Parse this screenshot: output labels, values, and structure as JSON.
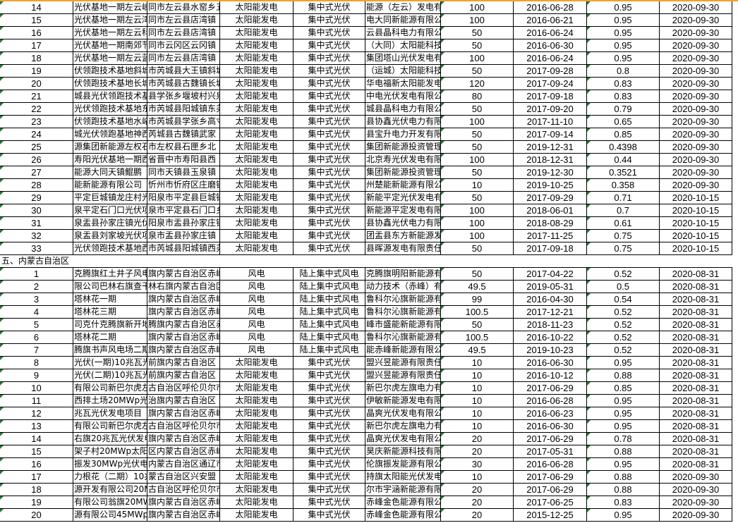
{
  "colors": {
    "indicator": "#1e7a30",
    "top_border": "#f0a030"
  },
  "groups": [
    {
      "rows": [
        [
          "14",
          "光伏基地一期左云峡",
          "同市左云县水窑乡五",
          "太阳能发电",
          "集中式光伏",
          "能源（左云）发电有",
          "100",
          "2016-06-28",
          "0.95",
          "2020-09-30"
        ],
        [
          "15",
          "光伏基地一期左云湾",
          "同市左云县店湾镇",
          "太阳能发电",
          "集中式光伏",
          "电大同新能源有限公",
          "100",
          "2016-06-21",
          "0.95",
          "2020-09-30"
        ],
        [
          "16",
          "光伏基地一期左云科",
          "同市左云县店湾镇",
          "太阳能发电",
          "集中式光伏",
          "云县晶科电力有限公",
          "50",
          "2016-06-24",
          "0.95",
          "2020-09-30"
        ],
        [
          "17",
          "光伏基地一期南郊节",
          "同市云冈区云冈镇",
          "太阳能发电",
          "集中式光伏",
          "（大同）太阳能科技",
          "50",
          "2016-06-30",
          "0.95",
          "2020-09-30"
        ],
        [
          "18",
          "光伏基地一期左云蓝",
          "同市左云县店湾镇",
          "太阳能发电",
          "集中式光伏",
          "集团塔山光伏发电有",
          "100",
          "2016-06-24",
          "0.95",
          "2020-09-30"
        ],
        [
          "19",
          "伏领跑技术基地斜城",
          "市芮城县大王镇斜城",
          "太阳能发电",
          "集中式光伏",
          "（运城）太阳能科技",
          "50",
          "2017-09-28",
          "0.8",
          "2020-09-30"
        ],
        [
          "20",
          "伏领跑技术基地长城",
          "市芮城县古魏镇长城",
          "太阳能发电",
          "集中式光伏",
          "华电福新太阳能发电",
          "120",
          "2017-09-24",
          "0.83",
          "2020-09-30"
        ],
        [
          "21",
          "城县光伏领跑技术基",
          "县学张乡堰坡村兴泉",
          "太阳能发电",
          "集中式光伏",
          "中电光伏发电有限公",
          "80",
          "2017-09-18",
          "0.83",
          "2020-09-30"
        ],
        [
          "22",
          "光伏领跑技术基地东",
          "市芮城县阳城镇东尧",
          "太阳能发电",
          "集中式光伏",
          "城县晶科电力有限公",
          "50",
          "2017-09-20",
          "0.79",
          "2020-09-30"
        ],
        [
          "23",
          "伏领跑技术基地水峪",
          "市芮城县学张乡高寸",
          "太阳能发电",
          "集中式光伏",
          "县协鑫光伏电力有限",
          "100",
          "2017-11-10",
          "0.65",
          "2020-09-30"
        ],
        [
          "24",
          "城光伏领跑基地神西",
          "芮城县古魏镇武家",
          "太阳能发电",
          "集中式光伏",
          "县宝升电力开发有限",
          "50",
          "2017-09-14",
          "0.85",
          "2020-09-30"
        ],
        [
          "25",
          "源集团新能源左权石",
          "市左权县石匣乡北",
          "太阳能发电",
          "集中式光伏",
          "集团新能源投资管理",
          "50",
          "2019-12-31",
          "0.4398",
          "2020-09-30"
        ],
        [
          "26",
          "寿阳光伏基地一期西",
          "省晋中市寿阳县西",
          "太阳能发电",
          "集中式光伏",
          "北京寿光伏发电有限",
          "100",
          "2018-12-31",
          "0.44",
          "2020-09-30"
        ],
        [
          "27",
          "能源大同天镇鲲鹏",
          "同市天镇县玉泉镇",
          "太阳能发电",
          "集中式光伏",
          "集团新能源投资管理",
          "50",
          "2019-12-30",
          "0.3521",
          "2020-09-30"
        ],
        [
          "28",
          "能新能源有限公司（",
          "忻州市忻府区庄磨镇",
          "太阳能发电",
          "集中式光伏",
          "州楚能新能源有限公",
          "10",
          "2019-10-25",
          "0.358",
          "2020-09-30"
        ],
        [
          "29",
          "平定巨城镇龙庄村光",
          "阳泉市平定县巨城镇",
          "太阳能发电",
          "集中式光伏",
          "新能平定光伏发电有",
          "50",
          "2017-09-29",
          "0.71",
          "2020-10-15"
        ],
        [
          "30",
          "泉平定石门口光伏项",
          "泉市平定县石门口乡",
          "太阳能发电",
          "集中式光伏",
          "新能源平定发电有限",
          "100",
          "2018-06-01",
          "0.7",
          "2020-10-15"
        ],
        [
          "31",
          "泉盂县孙家庄镇光伏",
          "阳泉市盂县孙家庄镇",
          "太阳能发电",
          "集中式光伏",
          "县协鑫光伏电力有限",
          "100",
          "2018-08-29",
          "0.61",
          "2020-10-15"
        ],
        [
          "32",
          "泉盂县刘家坡光伏项",
          "泉市盂县孙家庄镇",
          "太阳能发电",
          "集中式光伏",
          "团盂县东方新能源发",
          "100",
          "2017-11-25",
          "0.75",
          "2020-10-15"
        ],
        [
          "33",
          "光伏领跑技术基地西",
          "市芮城县阳城镇西尧",
          "太阳能发电",
          "集中式光伏",
          "县晖源发电有限责任",
          "50",
          "2017-09-18",
          "0.75",
          "2020-10-15"
        ]
      ]
    },
    {
      "section": "五、内蒙古自治区",
      "rows": [
        [
          "1",
          "克腾旗红土井子风电",
          "旗内蒙古自治区赤峰市",
          "风电",
          "陆上集中式风电",
          "克腾旗明阳新能源有限",
          "50",
          "2017-04-22",
          "0.52",
          "2020-08-31"
        ],
        [
          "2",
          "限公司巴林右旗查干",
          "林右旗内蒙古自治区",
          "风电",
          "陆上集中式风电",
          "动力技术（赤峰）有",
          "49.5",
          "2019-05-31",
          "0.5",
          "2020-08-31"
        ],
        [
          "3",
          "塔林花一期",
          "旗内蒙古自治区赤峰市",
          "风电",
          "陆上集中式风电",
          "鲁科尔沁旗新能源有",
          "99",
          "2016-04-30",
          "0.54",
          "2020-08-31"
        ],
        [
          "4",
          "塔林花三期",
          "旗内蒙古自治区赤峰市",
          "风电",
          "陆上集中式风电",
          "鲁科尔沁旗新能源有",
          "100.5",
          "2017-12-21",
          "0.52",
          "2020-08-31"
        ],
        [
          "5",
          "司克什克腾旗新开地",
          "腾旗内蒙古自治区赤",
          "风电",
          "陆上集中式风电",
          "峰市盛能新能源有限公",
          "50",
          "2018-11-23",
          "0.52",
          "2020-08-31"
        ],
        [
          "6",
          "塔林花二期",
          "旗内蒙古自治区赤峰市",
          "风电",
          "陆上集中式风电",
          "鲁科尔沁旗新能源有",
          "100.5",
          "2016-10-22",
          "0.52",
          "2020-08-31"
        ],
        [
          "7",
          "腾旗书声风电场二期",
          "旗内蒙古自治区赤峰",
          "风电",
          "陆上集中式风电",
          "能赤峰新能源有限公",
          "49.5",
          "2019-10-23",
          "0.52",
          "2020-08-31"
        ],
        [
          "8",
          "光伏(一期)10兆瓦光伏",
          "前旗内蒙古自治区",
          "太阳能发电",
          "集中式光伏",
          "盟兴昱能源有限责任",
          "10",
          "2016-06-30",
          "0.95",
          "2020-08-31"
        ],
        [
          "9",
          "光伏(二期)10兆瓦光伏",
          "前旗内蒙古自治区",
          "太阳能发电",
          "集中式光伏",
          "盟兴昱能源有限责任",
          "10",
          "2016-10-12",
          "0.88",
          "2020-08-31"
        ],
        [
          "10",
          "有限公司新巴尔虎左",
          "古自治区呼伦贝尔市",
          "太阳能发电",
          "集中式光伏",
          "新巴尔虎左旗电力有限",
          "10",
          "2017-06-29",
          "0.85",
          "2020-08-31"
        ],
        [
          "11",
          "西排土场20MWp光伏",
          "治旗内蒙古自治区",
          "太阳能发电",
          "集中式光伏",
          "伊敏新能源发电有限",
          "10",
          "2016-06-28",
          "0.95",
          "2020-08-31"
        ],
        [
          "12",
          "兆瓦光伏发电项目（",
          "旗内蒙古自治区赤峰",
          "太阳能发电",
          "集中式光伏",
          "晶爽光伏发电有限公",
          "10",
          "2016-06-23",
          "0.95",
          "2020-08-31"
        ],
        [
          "13",
          "有限公司新巴尔虎左",
          "古自治区呼伦贝尔市",
          "太阳能发电",
          "集中式光伏",
          "新巴尔虎左旗电力有限",
          "10",
          "2016-06-30",
          "0.95",
          "2020-08-31"
        ],
        [
          "14",
          "右旗20兆瓦光伏发电",
          "旗内蒙古自治区赤峰",
          "太阳能发电",
          "集中式光伏",
          "晶爽光伏发电有限公",
          "20",
          "2017-06-29",
          "0.78",
          "2020-08-31"
        ],
        [
          "15",
          "架子村20MWp太阳",
          "区内蒙古自治区赤峰",
          "太阳能发电",
          "集中式光伏",
          "昊庆新能源科技有限",
          "20",
          "2017-05-31",
          "0.88",
          "2020-08-31"
        ],
        [
          "16",
          "振发30MWp光伏电",
          "内蒙古自治区通辽市",
          "太阳能发电",
          "集中式光伏",
          "伦旗振发能源有限公",
          "30",
          "2016-06-28",
          "0.95",
          "2020-08-31"
        ],
        [
          "17",
          "力根花（二期）10兆",
          "蒙古自治区兴安盟",
          "太阳能发电",
          "集中式光伏",
          "持旗太阳能光伏发电",
          "10",
          "2017-06-29",
          "0.88",
          "2020-09-30"
        ],
        [
          "18",
          "源开发有限公司20MW",
          "古自治区呼伦贝尔市",
          "太阳能发电",
          "集中式光伏",
          "尔市宇涵新能源有限",
          "20",
          "2017-06-29",
          "0.88",
          "2020-09-30"
        ],
        [
          "19",
          "有限公司翁旗20MW",
          "旗内蒙古自治区赤峰",
          "太阳能发电",
          "集中式光伏",
          "赤峰金色能源有限公司",
          "20",
          "2017-06-25",
          "0.83",
          "2020-09-30"
        ],
        [
          "20",
          "源有限公司45MWp光",
          "旗内蒙古自治区赤峰",
          "太阳能发电",
          "集中式光伏",
          "赤峰金色能源有限公司",
          "20",
          "2015-12-25",
          "0.95",
          "2020-09-30"
        ]
      ]
    }
  ]
}
